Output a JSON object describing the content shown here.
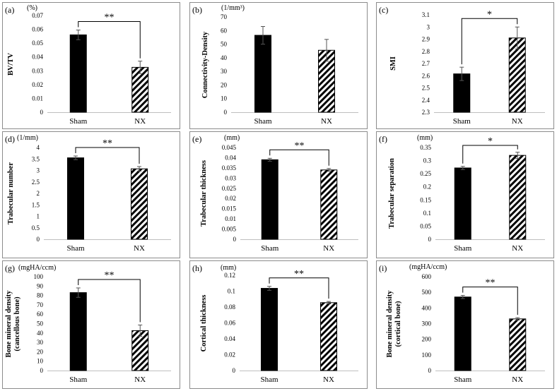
{
  "chart_data": [
    {
      "type": "bar",
      "panel": "(a)",
      "unit": "(%)",
      "ylabel": [
        "BV/TV"
      ],
      "categories": [
        "Sham",
        "NX"
      ],
      "values": [
        0.056,
        0.0325
      ],
      "errors": [
        0.0035,
        0.0045
      ],
      "ylim": [
        0,
        0.07
      ],
      "ticks": [
        "0",
        "0.01",
        "0.02",
        "0.03",
        "0.04",
        "0.05",
        "0.06",
        "0.07"
      ],
      "significance": "**"
    },
    {
      "type": "bar",
      "panel": "(b)",
      "unit": "(1/mm³)",
      "ylabel": [
        "Connectivity-Density"
      ],
      "categories": [
        "Sham",
        "NX"
      ],
      "values": [
        56.5,
        45.5
      ],
      "errors": [
        6.5,
        8
      ],
      "ylim": [
        0,
        70
      ],
      "ticks": [
        "0",
        "10",
        "20",
        "30",
        "40",
        "50",
        "60",
        "70"
      ],
      "significance": ""
    },
    {
      "type": "bar",
      "panel": "(c)",
      "unit": "",
      "ylabel": [
        "SMI"
      ],
      "categories": [
        "Sham",
        "NX"
      ],
      "values": [
        2.615,
        2.91
      ],
      "errors": [
        0.055,
        0.09
      ],
      "ylim": [
        2.3,
        3.1
      ],
      "ticks": [
        "2.3",
        "2.4",
        "2.5",
        "2.6",
        "2.7",
        "2.8",
        "2.9",
        "3",
        "3.1"
      ],
      "significance": "*"
    },
    {
      "type": "bar",
      "panel": "(d)",
      "unit": "(1/mm)",
      "ylabel": [
        "Trabecular number"
      ],
      "categories": [
        "Sham",
        "NX"
      ],
      "values": [
        3.55,
        3.07
      ],
      "errors": [
        0.08,
        0.1
      ],
      "ylim": [
        0,
        4
      ],
      "ticks": [
        "0",
        "0.5",
        "1",
        "1.5",
        "2",
        "2.5",
        "3",
        "3.5",
        "4"
      ],
      "significance": "**"
    },
    {
      "type": "bar",
      "panel": "(e)",
      "unit": "(mm)",
      "ylabel": [
        "Trabecular thickness"
      ],
      "categories": [
        "Sham",
        "NX"
      ],
      "values": [
        0.039,
        0.034
      ],
      "errors": [
        0.0007,
        0.0007
      ],
      "ylim": [
        0,
        0.045
      ],
      "ticks": [
        "0",
        "0.005",
        "0.01",
        "0.015",
        "0.02",
        "0.025",
        "0.03",
        "0.035",
        "0.04",
        "0.045"
      ],
      "significance": "**"
    },
    {
      "type": "bar",
      "panel": "(f)",
      "unit": "(mm)",
      "ylabel": [
        "Trabecular separation"
      ],
      "categories": [
        "Sham",
        "NX"
      ],
      "values": [
        0.272,
        0.32
      ],
      "errors": [
        0.006,
        0.012
      ],
      "ylim": [
        0,
        0.35
      ],
      "ticks": [
        "0",
        "0.05",
        "0.1",
        "0.15",
        "0.2",
        "0.25",
        "0.3",
        "0.35"
      ],
      "significance": "*"
    },
    {
      "type": "bar",
      "panel": "(g)",
      "unit": "(mgHA/ccm)",
      "ylabel": [
        "Bone mineral density",
        "(cancellous bone)"
      ],
      "categories": [
        "Sham",
        "NX"
      ],
      "values": [
        83,
        42.5
      ],
      "errors": [
        5,
        6
      ],
      "ylim": [
        0,
        100
      ],
      "ticks": [
        "0",
        "10",
        "20",
        "30",
        "40",
        "50",
        "60",
        "70",
        "80",
        "90",
        "100"
      ],
      "significance": "**"
    },
    {
      "type": "bar",
      "panel": "(h)",
      "unit": "(mm)",
      "ylabel": [
        "Cortical thickness"
      ],
      "categories": [
        "Sham",
        "NX"
      ],
      "values": [
        0.1035,
        0.0855
      ],
      "errors": [
        0.0025,
        0.0015
      ],
      "ylim": [
        0,
        0.12
      ],
      "ticks": [
        "0",
        "0.02",
        "0.04",
        "0.06",
        "0.08",
        "0.1",
        "0.12"
      ],
      "significance": "**"
    },
    {
      "type": "bar",
      "panel": "(i)",
      "unit": "(mgHA/ccm)",
      "ylabel": [
        "Bone mineral density",
        "(cortical bone)"
      ],
      "categories": [
        "Sham",
        "NX"
      ],
      "values": [
        470,
        330
      ],
      "errors": [
        10,
        8
      ],
      "ylim": [
        0,
        600
      ],
      "ticks": [
        "0",
        "100",
        "200",
        "300",
        "400",
        "500",
        "600"
      ],
      "significance": "**"
    }
  ],
  "style": {
    "sham_color": "#000000",
    "nx_pattern": "diagonal-hatch",
    "border_color": "#8c8c8c",
    "error_color": "#555555"
  }
}
